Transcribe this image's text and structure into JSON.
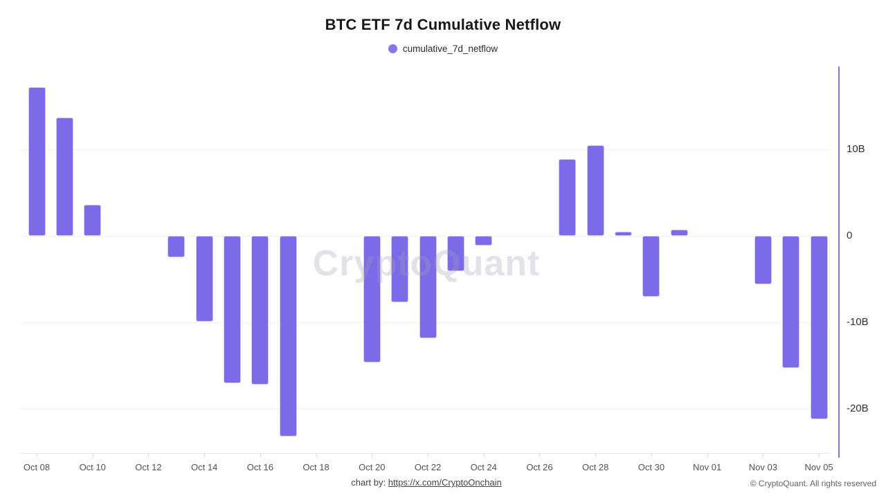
{
  "page": {
    "title": "BTC ETF 7d Cumulative Netflow",
    "legend": {
      "label": "cumulative_7d_netflow",
      "swatch_color": "#8577e9"
    },
    "watermark": "CryptoQuant",
    "footer": {
      "chart_by_prefix": "chart by: ",
      "link_text": "https://x.com/CryptoOnchain",
      "copyright": "© CryptoQuant. All rights reserved"
    }
  },
  "colors": {
    "bar": "#7c6be8",
    "bar_edge": "#cdc5f4",
    "y_axis_line": "#8373ea",
    "gridline": "#f1f1f5",
    "title_text": "#17171c"
  },
  "chart_data": {
    "type": "bar",
    "title": "BTC ETF 7d Cumulative Netflow",
    "series_name": "cumulative_7d_netflow",
    "unit": "billions USD (B)",
    "categories": [
      "Oct 08",
      "Oct 09",
      "Oct 10",
      "Oct 13",
      "Oct 14",
      "Oct 15",
      "Oct 16",
      "Oct 17",
      "Oct 20",
      "Oct 21",
      "Oct 22",
      "Oct 23",
      "Oct 24",
      "Oct 27",
      "Oct 28",
      "Oct 29",
      "Oct 30",
      "Oct 31",
      "Nov 03",
      "Nov 04",
      "Nov 05"
    ],
    "values": [
      17.2,
      13.7,
      3.6,
      -2.5,
      -9.9,
      -17.0,
      -17.2,
      -23.2,
      -14.6,
      -7.7,
      -11.8,
      -4.1,
      -1.1,
      8.9,
      10.5,
      0.5,
      -7.0,
      0.75,
      -5.6,
      -15.3,
      -21.2
    ],
    "x_tick_labels": [
      "Oct 08",
      "Oct 10",
      "Oct 12",
      "Oct 14",
      "Oct 16",
      "Oct 18",
      "Oct 20",
      "Oct 22",
      "Oct 24",
      "Oct 26",
      "Oct 28",
      "Oct 30",
      "Nov 01",
      "Nov 03",
      "Nov 05"
    ],
    "y_ticks": [
      {
        "value": 10,
        "label": "10B"
      },
      {
        "value": 0,
        "label": "0"
      },
      {
        "value": -10,
        "label": "-10B"
      },
      {
        "value": -20,
        "label": "-20B"
      }
    ],
    "ylim": [
      -25.6,
      19.5
    ],
    "grid": "horizontal",
    "legend_position": "top",
    "y_axis_side": "right",
    "missing_days": "weekends omitted"
  }
}
